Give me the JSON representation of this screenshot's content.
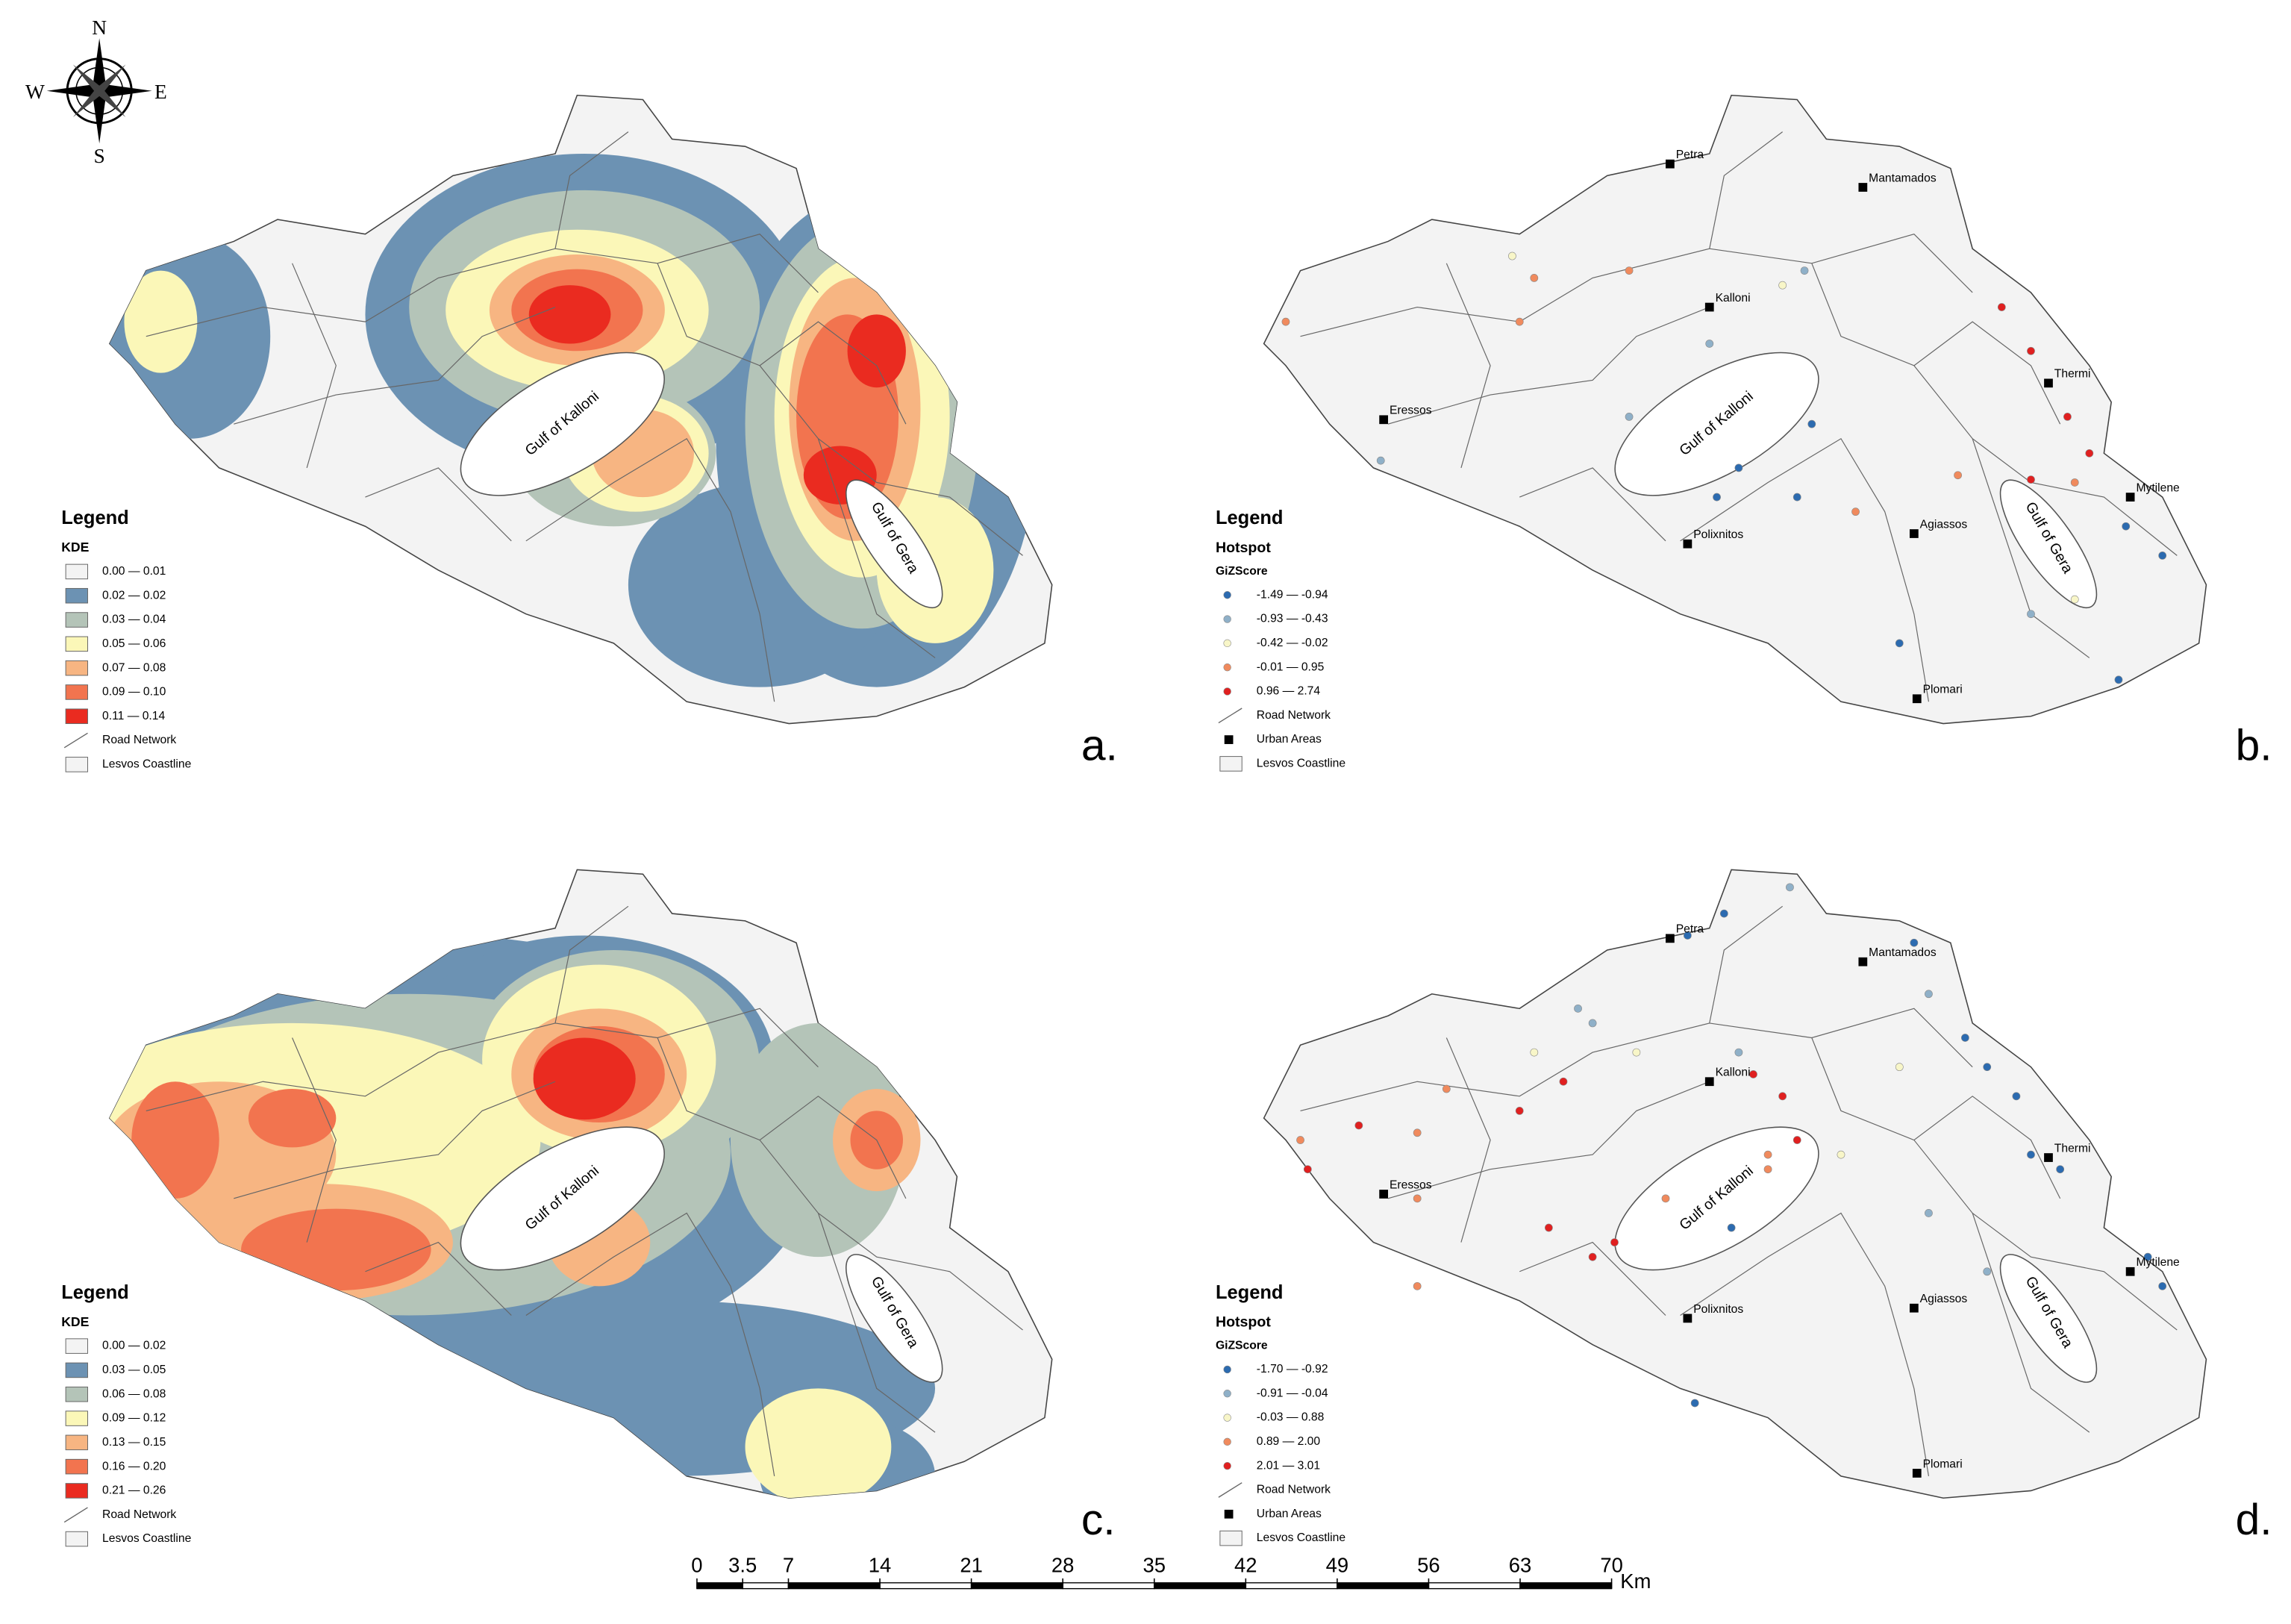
{
  "compass": {
    "n": "N",
    "e": "E",
    "s": "S",
    "w": "W"
  },
  "panels": [
    {
      "label": "a.",
      "legend": {
        "title": "Legend",
        "layer": "KDE",
        "classes": [
          {
            "label": "0.00 — 0.01",
            "color": "#f3f3f3"
          },
          {
            "label": "0.02 — 0.02",
            "color": "#6c92b3"
          },
          {
            "label": "0.03 — 0.04",
            "color": "#b4c4b8"
          },
          {
            "label": "0.05 — 0.06",
            "color": "#fbf7b8"
          },
          {
            "label": "0.07 — 0.08",
            "color": "#f7b582"
          },
          {
            "label": "0.09 — 0.10",
            "color": "#f2744f"
          },
          {
            "label": "0.11 — 0.14",
            "color": "#ea2b20"
          }
        ],
        "extras": [
          "Road Network",
          "Lesvos Coastline"
        ]
      },
      "gulfs": [
        "Gulf of Kalloni",
        "Gulf of Gera"
      ]
    },
    {
      "label": "b.",
      "legend": {
        "title": "Legend",
        "layer": "Hotspot",
        "field": "GiZScore",
        "classes": [
          {
            "label": "-1.49 — -0.94",
            "color": "#2c6bb0"
          },
          {
            "label": "-0.93 — -0.43",
            "color": "#8fb0c8"
          },
          {
            "label": "-0.42 — -0.02",
            "color": "#f8f6c8"
          },
          {
            "label": "-0.01 — 0.95",
            "color": "#f08a5d"
          },
          {
            "label": "0.96 — 2.74",
            "color": "#e02020"
          }
        ],
        "extras": [
          "Road Network",
          "Urban Areas",
          "Lesvos Coastline"
        ]
      },
      "gulfs": [
        "Gulf of Kalloni",
        "Gulf of Gera"
      ],
      "towns": [
        "Petra",
        "Mantamados",
        "Kalloni",
        "Thermi",
        "Eressos",
        "Mytilene",
        "Polixnitos",
        "Agiassos",
        "Plomari"
      ]
    },
    {
      "label": "c.",
      "legend": {
        "title": "Legend",
        "layer": "KDE",
        "classes": [
          {
            "label": "0.00 — 0.02",
            "color": "#f3f3f3"
          },
          {
            "label": "0.03 — 0.05",
            "color": "#6c92b3"
          },
          {
            "label": "0.06 — 0.08",
            "color": "#b4c4b8"
          },
          {
            "label": "0.09 — 0.12",
            "color": "#fbf7b8"
          },
          {
            "label": "0.13 — 0.15",
            "color": "#f7b582"
          },
          {
            "label": "0.16 — 0.20",
            "color": "#f2744f"
          },
          {
            "label": "0.21 — 0.26",
            "color": "#ea2b20"
          }
        ],
        "extras": [
          "Road Network",
          "Lesvos Coastline"
        ]
      },
      "gulfs": [
        "Gulf of Kalloni",
        "Gulf of Gera"
      ]
    },
    {
      "label": "d.",
      "legend": {
        "title": "Legend",
        "layer": "Hotspot",
        "field": "GiZScore",
        "classes": [
          {
            "label": "-1.70 — -0.92",
            "color": "#2c6bb0"
          },
          {
            "label": "-0.91 — -0.04",
            "color": "#8fb0c8"
          },
          {
            "label": "-0.03 — 0.88",
            "color": "#f8f6c8"
          },
          {
            "label": "0.89 — 2.00",
            "color": "#f08a5d"
          },
          {
            "label": "2.01 — 3.01",
            "color": "#e02020"
          }
        ],
        "extras": [
          "Road Network",
          "Urban Areas",
          "Lesvos Coastline"
        ]
      },
      "gulfs": [
        "Gulf of Kalloni",
        "Gulf of Gera"
      ],
      "towns": [
        "Petra",
        "Mantamados",
        "Kalloni",
        "Thermi",
        "Eressos",
        "Mytilene",
        "Polixnitos",
        "Agiassos",
        "Plomari"
      ]
    }
  ],
  "scale_bar": {
    "ticks": [
      0,
      3.5,
      7,
      14,
      21,
      28,
      35,
      42,
      49,
      56,
      63,
      70
    ],
    "unit": "Km"
  }
}
